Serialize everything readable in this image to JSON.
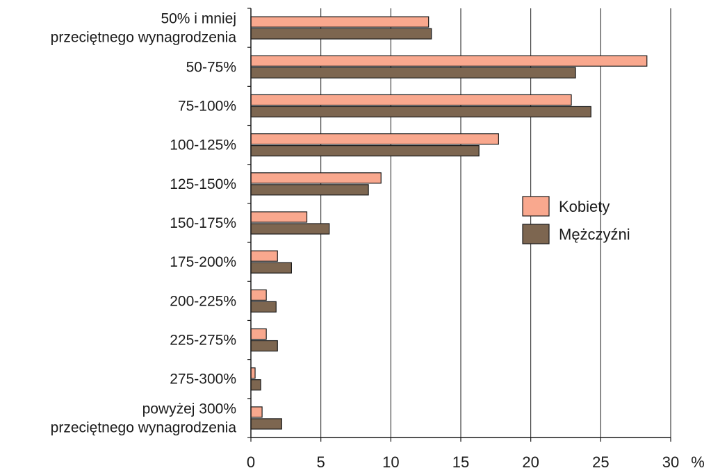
{
  "chart_data": {
    "type": "bar",
    "orientation": "horizontal",
    "categories": [
      [
        "50% i mniej",
        "przeciętnego wynagrodzenia"
      ],
      [
        "50-75%"
      ],
      [
        "75-100%"
      ],
      [
        "100-125%"
      ],
      [
        "125-150%"
      ],
      [
        "150-175%"
      ],
      [
        "175-200%"
      ],
      [
        "200-225%"
      ],
      [
        "225-275%"
      ],
      [
        "275-300%"
      ],
      [
        "powyżej 300%",
        "przeciętnego wynagrodzenia"
      ]
    ],
    "series": [
      {
        "name": "Kobiety",
        "color": "#f9a88e",
        "values": [
          12.7,
          28.3,
          22.9,
          17.7,
          9.3,
          4.0,
          1.9,
          1.1,
          1.1,
          0.3,
          0.8
        ]
      },
      {
        "name": "Mężczyźni",
        "color": "#7d6650",
        "values": [
          12.9,
          23.2,
          24.3,
          16.3,
          8.4,
          5.6,
          2.9,
          1.8,
          1.9,
          0.7,
          2.2
        ]
      }
    ],
    "xlim": [
      0,
      30
    ],
    "xticks": [
      0,
      5,
      10,
      15,
      20,
      25,
      30
    ],
    "xunit": "%",
    "grid": "vertical",
    "legend": "right-middle"
  }
}
